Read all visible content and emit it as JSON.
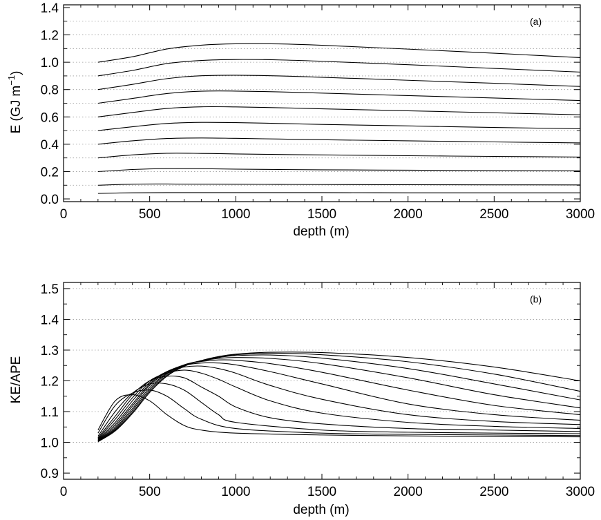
{
  "chart_data": [
    {
      "type": "line",
      "panel_label": "(a)",
      "xlabel": "depth (m)",
      "ylabel_main": "E (GJ m",
      "ylabel_sup": "−1",
      "ylabel_end": ")",
      "xlim": [
        0,
        3000
      ],
      "ylim": [
        -0.02,
        1.42
      ],
      "xticks": [
        0,
        500,
        1000,
        1500,
        2000,
        2500,
        3000
      ],
      "xtick_labels": [
        "0",
        "500",
        "1000",
        "1500",
        "2000",
        "2500",
        "3000"
      ],
      "yticks": [
        0.0,
        0.2,
        0.4,
        0.6,
        0.8,
        1.0,
        1.2,
        1.4
      ],
      "ytick_labels": [
        "0.0",
        "0.2",
        "0.4",
        "0.6",
        "0.8",
        "1.0",
        "1.2",
        "1.4"
      ],
      "grid_y_dotted": [
        0.1,
        0.2,
        0.3,
        0.4,
        0.5,
        0.6,
        0.7,
        0.8,
        0.9,
        1.0,
        1.1,
        1.2,
        1.3
      ],
      "x": [
        200,
        400,
        600,
        800,
        1000,
        1250,
        1500,
        2000,
        2500,
        3000
      ],
      "series": [
        {
          "values": [
            0.04,
            0.045,
            0.046,
            0.046,
            0.046,
            0.046,
            0.046,
            0.045,
            0.045,
            0.045
          ]
        },
        {
          "values": [
            0.1,
            0.108,
            0.109,
            0.108,
            0.107,
            0.106,
            0.105,
            0.104,
            0.103,
            0.102
          ]
        },
        {
          "values": [
            0.2,
            0.215,
            0.222,
            0.221,
            0.218,
            0.215,
            0.213,
            0.21,
            0.207,
            0.205
          ]
        },
        {
          "values": [
            0.3,
            0.322,
            0.334,
            0.333,
            0.329,
            0.325,
            0.322,
            0.316,
            0.311,
            0.306
          ]
        },
        {
          "values": [
            0.4,
            0.425,
            0.442,
            0.446,
            0.443,
            0.438,
            0.433,
            0.425,
            0.417,
            0.41
          ]
        },
        {
          "values": [
            0.5,
            0.528,
            0.552,
            0.56,
            0.558,
            0.552,
            0.545,
            0.534,
            0.523,
            0.513
          ]
        },
        {
          "values": [
            0.6,
            0.632,
            0.662,
            0.674,
            0.673,
            0.667,
            0.659,
            0.645,
            0.63,
            0.616
          ]
        },
        {
          "values": [
            0.7,
            0.735,
            0.771,
            0.788,
            0.789,
            0.783,
            0.774,
            0.756,
            0.738,
            0.72
          ]
        },
        {
          "values": [
            0.8,
            0.838,
            0.88,
            0.901,
            0.905,
            0.9,
            0.89,
            0.868,
            0.846,
            0.823
          ]
        },
        {
          "values": [
            0.9,
            0.94,
            0.99,
            1.013,
            1.02,
            1.017,
            1.007,
            0.982,
            0.955,
            0.928
          ]
        },
        {
          "values": [
            1.0,
            1.04,
            1.097,
            1.125,
            1.135,
            1.134,
            1.124,
            1.096,
            1.066,
            1.034
          ]
        }
      ]
    },
    {
      "type": "line",
      "panel_label": "(b)",
      "xlabel": "depth (m)",
      "ylabel": "KE/APE",
      "xlim": [
        0,
        3000
      ],
      "ylim": [
        0.88,
        1.52
      ],
      "xticks": [
        0,
        500,
        1000,
        1500,
        2000,
        2500,
        3000
      ],
      "xtick_labels": [
        "0",
        "500",
        "1000",
        "1500",
        "2000",
        "2500",
        "3000"
      ],
      "yticks": [
        0.9,
        1.0,
        1.1,
        1.2,
        1.3,
        1.4,
        1.5
      ],
      "ytick_labels": [
        "0.9",
        "1.0",
        "1.1",
        "1.2",
        "1.3",
        "1.4",
        "1.5"
      ],
      "grid_y_dotted": [
        1.0,
        1.1,
        1.2,
        1.3,
        1.4,
        1.5
      ],
      "series": [
        {
          "points": [
            [
              200,
              1.04
            ],
            [
              300,
              1.135
            ],
            [
              400,
              1.155
            ],
            [
              500,
              1.135
            ],
            [
              600,
              1.09
            ],
            [
              700,
              1.055
            ],
            [
              800,
              1.04
            ],
            [
              1000,
              1.03
            ],
            [
              1500,
              1.024
            ],
            [
              2000,
              1.021
            ],
            [
              2500,
              1.019
            ],
            [
              3000,
              1.018
            ]
          ]
        },
        {
          "points": [
            [
              200,
              1.03
            ],
            [
              300,
              1.12
            ],
            [
              400,
              1.16
            ],
            [
              500,
              1.17
            ],
            [
              600,
              1.15
            ],
            [
              700,
              1.11
            ],
            [
              800,
              1.075
            ],
            [
              1000,
              1.045
            ],
            [
              1500,
              1.03
            ],
            [
              2000,
              1.026
            ],
            [
              2500,
              1.024
            ],
            [
              3000,
              1.022
            ]
          ]
        },
        {
          "points": [
            [
              200,
              1.02
            ],
            [
              300,
              1.1
            ],
            [
              400,
              1.16
            ],
            [
              500,
              1.19
            ],
            [
              600,
              1.19
            ],
            [
              700,
              1.17
            ],
            [
              800,
              1.13
            ],
            [
              900,
              1.09
            ],
            [
              1000,
              1.065
            ],
            [
              1500,
              1.04
            ],
            [
              2000,
              1.033
            ],
            [
              2500,
              1.03
            ],
            [
              3000,
              1.028
            ]
          ]
        },
        {
          "points": [
            [
              200,
              1.015
            ],
            [
              300,
              1.085
            ],
            [
              400,
              1.155
            ],
            [
              500,
              1.2
            ],
            [
              600,
              1.215
            ],
            [
              700,
              1.21
            ],
            [
              800,
              1.18
            ],
            [
              900,
              1.15
            ],
            [
              1000,
              1.115
            ],
            [
              1200,
              1.08
            ],
            [
              1500,
              1.06
            ],
            [
              2000,
              1.045
            ],
            [
              2500,
              1.04
            ],
            [
              3000,
              1.035
            ]
          ]
        },
        {
          "points": [
            [
              200,
              1.012
            ],
            [
              300,
              1.075
            ],
            [
              400,
              1.145
            ],
            [
              500,
              1.2
            ],
            [
              600,
              1.225
            ],
            [
              700,
              1.235
            ],
            [
              800,
              1.225
            ],
            [
              900,
              1.205
            ],
            [
              1000,
              1.18
            ],
            [
              1200,
              1.135
            ],
            [
              1500,
              1.095
            ],
            [
              2000,
              1.065
            ],
            [
              2500,
              1.052
            ],
            [
              3000,
              1.045
            ]
          ]
        },
        {
          "points": [
            [
              200,
              1.01
            ],
            [
              300,
              1.065
            ],
            [
              400,
              1.135
            ],
            [
              500,
              1.195
            ],
            [
              600,
              1.23
            ],
            [
              700,
              1.245
            ],
            [
              800,
              1.248
            ],
            [
              900,
              1.24
            ],
            [
              1000,
              1.225
            ],
            [
              1200,
              1.185
            ],
            [
              1500,
              1.14
            ],
            [
              2000,
              1.09
            ],
            [
              2500,
              1.068
            ],
            [
              3000,
              1.058
            ]
          ]
        },
        {
          "points": [
            [
              200,
              1.008
            ],
            [
              300,
              1.058
            ],
            [
              400,
              1.125
            ],
            [
              500,
              1.19
            ],
            [
              600,
              1.23
            ],
            [
              700,
              1.25
            ],
            [
              800,
              1.258
            ],
            [
              900,
              1.258
            ],
            [
              1000,
              1.252
            ],
            [
              1200,
              1.23
            ],
            [
              1500,
              1.19
            ],
            [
              2000,
              1.125
            ],
            [
              2500,
              1.09
            ],
            [
              3000,
              1.072
            ]
          ]
        },
        {
          "points": [
            [
              200,
              1.006
            ],
            [
              300,
              1.052
            ],
            [
              400,
              1.118
            ],
            [
              500,
              1.185
            ],
            [
              600,
              1.228
            ],
            [
              700,
              1.252
            ],
            [
              800,
              1.263
            ],
            [
              900,
              1.268
            ],
            [
              1000,
              1.267
            ],
            [
              1200,
              1.256
            ],
            [
              1500,
              1.228
            ],
            [
              2000,
              1.17
            ],
            [
              2500,
              1.12
            ],
            [
              3000,
              1.09
            ]
          ]
        },
        {
          "points": [
            [
              200,
              1.005
            ],
            [
              300,
              1.047
            ],
            [
              400,
              1.11
            ],
            [
              500,
              1.178
            ],
            [
              600,
              1.225
            ],
            [
              700,
              1.252
            ],
            [
              800,
              1.265
            ],
            [
              900,
              1.273
            ],
            [
              1000,
              1.276
            ],
            [
              1200,
              1.273
            ],
            [
              1500,
              1.256
            ],
            [
              2000,
              1.21
            ],
            [
              2500,
              1.155
            ],
            [
              3000,
              1.112
            ]
          ]
        },
        {
          "points": [
            [
              200,
              1.004
            ],
            [
              300,
              1.043
            ],
            [
              400,
              1.104
            ],
            [
              500,
              1.172
            ],
            [
              600,
              1.222
            ],
            [
              700,
              1.25
            ],
            [
              800,
              1.266
            ],
            [
              900,
              1.276
            ],
            [
              1000,
              1.282
            ],
            [
              1200,
              1.284
            ],
            [
              1500,
              1.274
            ],
            [
              2000,
              1.24
            ],
            [
              2500,
              1.19
            ],
            [
              3000,
              1.138
            ]
          ]
        },
        {
          "points": [
            [
              200,
              1.003
            ],
            [
              300,
              1.04
            ],
            [
              400,
              1.098
            ],
            [
              500,
              1.167
            ],
            [
              600,
              1.218
            ],
            [
              700,
              1.249
            ],
            [
              800,
              1.266
            ],
            [
              900,
              1.278
            ],
            [
              1000,
              1.285
            ],
            [
              1200,
              1.29
            ],
            [
              1500,
              1.285
            ],
            [
              2000,
              1.262
            ],
            [
              2500,
              1.222
            ],
            [
              3000,
              1.166
            ]
          ]
        },
        {
          "points": [
            [
              200,
              1.002
            ],
            [
              300,
              1.037
            ],
            [
              400,
              1.094
            ],
            [
              500,
              1.162
            ],
            [
              600,
              1.215
            ],
            [
              700,
              1.247
            ],
            [
              800,
              1.266
            ],
            [
              900,
              1.279
            ],
            [
              1000,
              1.287
            ],
            [
              1200,
              1.293
            ],
            [
              1500,
              1.292
            ],
            [
              2000,
              1.276
            ],
            [
              2500,
              1.245
            ],
            [
              3000,
              1.2
            ]
          ]
        }
      ]
    }
  ]
}
